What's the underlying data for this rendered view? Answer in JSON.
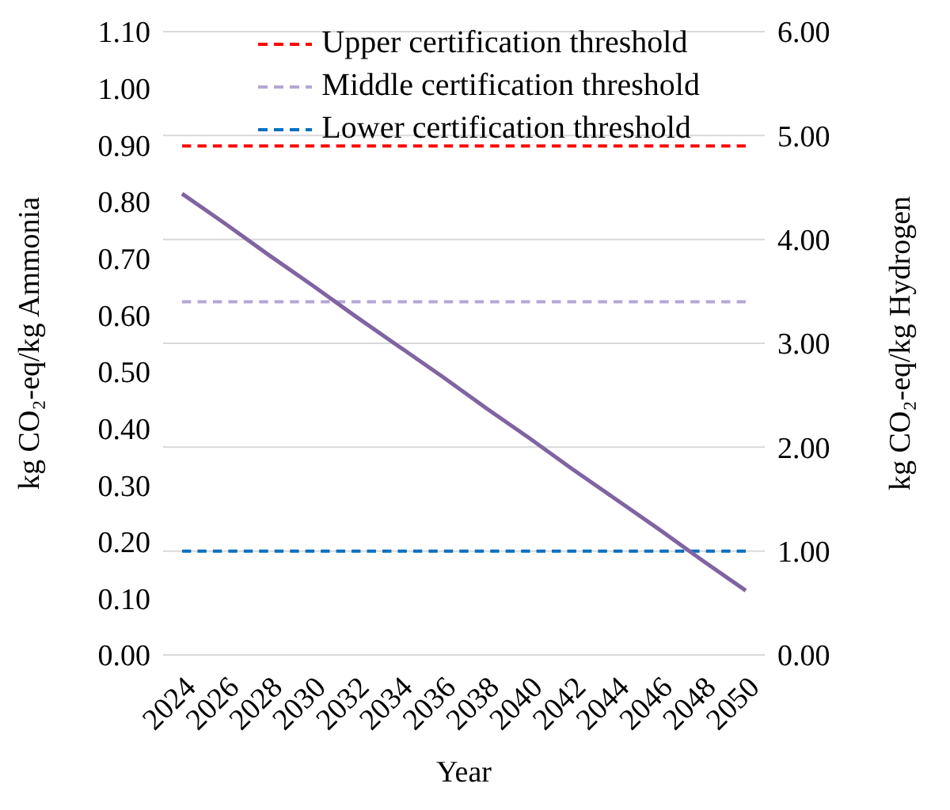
{
  "chart_data": {
    "type": "line",
    "xlabel": "Year",
    "ylabel": "kg CO₂-eq/kg Ammonia",
    "y2label": "kg CO₂-eq/kg Hydrogen",
    "categories": [
      "2024",
      "2026",
      "2028",
      "2030",
      "2032",
      "2034",
      "2036",
      "2038",
      "2040",
      "2042",
      "2044",
      "2046",
      "2048",
      "2050"
    ],
    "series": [
      {
        "name": "Upper certification threshold",
        "color": "#ff0000",
        "axis": "y2",
        "line_style": "dashed",
        "values": [
          4.9,
          4.9,
          4.9,
          4.9,
          4.9,
          4.9,
          4.9,
          4.9,
          4.9,
          4.9,
          4.9,
          4.9,
          4.9,
          4.9
        ]
      },
      {
        "name": "Middle certification threshold",
        "color": "#b4a7d6",
        "axis": "y2",
        "line_style": "dashed",
        "values": [
          3.4,
          3.4,
          3.4,
          3.4,
          3.4,
          3.4,
          3.4,
          3.4,
          3.4,
          3.4,
          3.4,
          3.4,
          3.4,
          3.4
        ]
      },
      {
        "name": "Lower certification threshold",
        "color": "#0070c0",
        "axis": "y2",
        "line_style": "dashed",
        "values": [
          1.0,
          1.0,
          1.0,
          1.0,
          1.0,
          1.0,
          1.0,
          1.0,
          1.0,
          1.0,
          1.0,
          1.0,
          1.0,
          1.0
        ]
      },
      {
        "color": "#8064a2",
        "axis": "y2",
        "line_style": "solid",
        "values": [
          4.44,
          4.15,
          3.85,
          3.56,
          3.26,
          2.97,
          2.68,
          2.38,
          2.09,
          1.79,
          1.5,
          1.21,
          0.91,
          0.62
        ]
      }
    ],
    "ylim": [
      0,
      1.1
    ],
    "yticks": [
      {
        "value": 0,
        "label": "0.00"
      },
      {
        "value": 0.1,
        "label": "0.10"
      },
      {
        "value": 0.2,
        "label": "0.20"
      },
      {
        "value": 0.3,
        "label": "0.30"
      },
      {
        "value": 0.4,
        "label": "0.40"
      },
      {
        "value": 0.5,
        "label": "0.50"
      },
      {
        "value": 0.6,
        "label": "0.60"
      },
      {
        "value": 0.7,
        "label": "0.70"
      },
      {
        "value": 0.8,
        "label": "0.80"
      },
      {
        "value": 0.9,
        "label": "0.90"
      },
      {
        "value": 1.0,
        "label": "1.00"
      },
      {
        "value": 1.1,
        "label": "1.10"
      }
    ],
    "y2lim": [
      0,
      6
    ],
    "y2ticks": [
      {
        "value": 0,
        "label": "0.00"
      },
      {
        "value": 1,
        "label": "1.00"
      },
      {
        "value": 2,
        "label": "2.00"
      },
      {
        "value": 3,
        "label": "3.00"
      },
      {
        "value": 4,
        "label": "4.00"
      },
      {
        "value": 5,
        "label": "5.00"
      },
      {
        "value": 6,
        "label": "6.00"
      }
    ],
    "grid": "y",
    "legend": "top",
    "marker": "none"
  }
}
